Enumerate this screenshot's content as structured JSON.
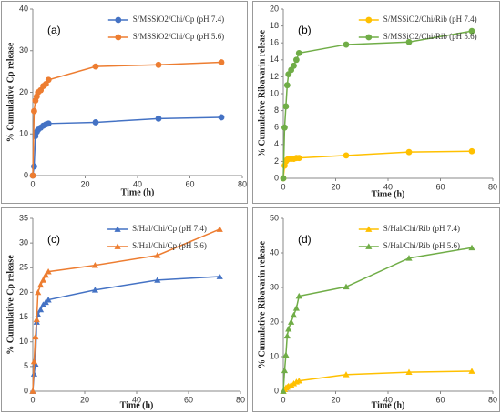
{
  "chart_data": [
    {
      "type": "line",
      "label": "(a)",
      "x_label": "Time (h)",
      "y_label": "% Cumulative Cp release",
      "x": [
        0,
        0.5,
        1,
        1.5,
        2,
        3,
        4,
        5,
        6,
        24,
        48,
        72
      ],
      "series": [
        {
          "name": "S/MSSiO2/Chi/Cp (pH 7.4)",
          "color": "#4472c4",
          "marker": "circle",
          "values": [
            0,
            2.2,
            9.5,
            10.5,
            11,
            11.5,
            12,
            12.3,
            12.5,
            12.8,
            13.7,
            14
          ]
        },
        {
          "name": "S/MSSiO2/Chi/Cp (pH 5.6)",
          "color": "#ed7d31",
          "marker": "circle",
          "values": [
            0,
            15.5,
            18,
            19,
            20,
            20.5,
            21.5,
            22,
            23,
            26.2,
            26.6,
            27.2
          ]
        }
      ],
      "xlim": [
        0,
        80
      ],
      "xticks": [
        0,
        20,
        40,
        60,
        80
      ],
      "ylim": [
        0,
        40
      ],
      "yticks": [
        0,
        10,
        20,
        30,
        40
      ],
      "legend": "upper right"
    },
    {
      "type": "line",
      "label": "(b)",
      "x_label": "Time (h)",
      "y_label": "% Cumulative Ribavarin  release",
      "x": [
        0,
        0.5,
        1,
        1.5,
        2,
        3,
        4,
        5,
        6,
        24,
        48,
        72
      ],
      "series": [
        {
          "name": "S/MSSiO2/Chi/Rib (pH 7.4)",
          "color": "#ffc000",
          "marker": "circle",
          "values": [
            0,
            1.5,
            2,
            2.2,
            2.3,
            2.3,
            2.3,
            2.4,
            2.4,
            2.7,
            3.1,
            3.2
          ]
        },
        {
          "name": "S/MSSiO2/Chi/Rib (pH 5.6)",
          "color": "#70ad47",
          "marker": "circle",
          "values": [
            0,
            6,
            8.5,
            11,
            12.3,
            12.8,
            13.3,
            14,
            14.8,
            15.8,
            16.1,
            17.4
          ]
        }
      ],
      "xlim": [
        0,
        80
      ],
      "xticks": [
        0,
        20,
        40,
        60,
        80
      ],
      "ylim": [
        0,
        20
      ],
      "yticks": [
        0,
        2,
        4,
        6,
        8,
        10,
        12,
        14,
        16,
        18,
        20
      ],
      "legend": "upper right"
    },
    {
      "type": "line",
      "label": "(c)",
      "x_label": "Time (h)",
      "y_label": "% Cumulative Cp release",
      "x": [
        0,
        0.5,
        1,
        1.5,
        2,
        3,
        4,
        5,
        6,
        24,
        48,
        72
      ],
      "series": [
        {
          "name": "S/Hal/Chi/Cp (pH 7.4)",
          "color": "#4472c4",
          "marker": "triangle",
          "values": [
            0,
            3.5,
            5.5,
            14,
            15.5,
            16.5,
            17.5,
            18,
            18.5,
            20.5,
            22.5,
            23.2
          ]
        },
        {
          "name": "S/Hal/Chi/Cp (pH 5.6)",
          "color": "#ed7d31",
          "marker": "triangle",
          "values": [
            0,
            6,
            11,
            14.5,
            20,
            21.5,
            22.5,
            23.5,
            24.2,
            25.5,
            27.5,
            32.8
          ]
        }
      ],
      "xlim": [
        0,
        80
      ],
      "xticks": [
        0,
        20,
        40,
        60,
        80
      ],
      "ylim": [
        0,
        35
      ],
      "yticks": [
        0,
        5,
        10,
        15,
        20,
        25,
        30,
        35
      ],
      "legend": "upper right"
    },
    {
      "type": "line",
      "label": "(d)",
      "x_label": "Time (h)",
      "y_label": "% Cumulative Ribavarin  release",
      "x": [
        0,
        0.5,
        1,
        1.5,
        2,
        3,
        4,
        5,
        6,
        24,
        48,
        72
      ],
      "series": [
        {
          "name": "S/Hal/Chi/Rib (pH 7.4)",
          "color": "#ffc000",
          "marker": "triangle",
          "values": [
            0,
            0.5,
            1,
            1.2,
            1.5,
            1.8,
            2.2,
            2.7,
            3,
            4.8,
            5.5,
            5.8
          ]
        },
        {
          "name": "S/Hal/Chi/Rib (pH 5.6)",
          "color": "#70ad47",
          "marker": "triangle",
          "values": [
            0,
            6,
            10.5,
            16,
            18,
            20,
            22,
            24,
            27.5,
            30.2,
            38.5,
            41.5
          ]
        }
      ],
      "xlim": [
        0,
        80
      ],
      "xticks": [
        0,
        20,
        40,
        60,
        80
      ],
      "ylim": [
        0,
        50
      ],
      "yticks": [
        0,
        10,
        20,
        30,
        40,
        50
      ],
      "legend": "upper right"
    }
  ]
}
